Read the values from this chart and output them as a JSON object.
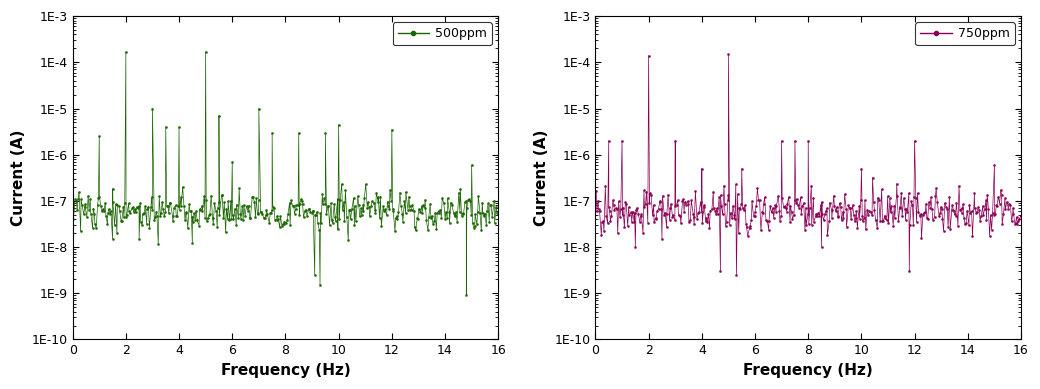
{
  "left_label": "500ppm",
  "right_label": "750ppm",
  "left_color": "#1a6600",
  "right_color": "#8B0057",
  "xlabel": "Frequency (Hz)",
  "ylabel": "Current (A)",
  "xlim": [
    0,
    16
  ],
  "ylim_log": [
    -10,
    -3
  ],
  "xticks": [
    0,
    2,
    4,
    6,
    8,
    10,
    12,
    14,
    16
  ],
  "ytick_labels": [
    "1E-10",
    "1E-9",
    "1E-8",
    "1E-7",
    "1E-6",
    "1E-5",
    "1E-4",
    "1E-3"
  ],
  "left_peaks_x": [
    1.0,
    2.0,
    3.0,
    3.5,
    4.0,
    5.0,
    5.5,
    6.0,
    7.0,
    7.5,
    8.5,
    9.5,
    10.0,
    12.0,
    15.0
  ],
  "left_peaks_y": [
    2.5e-06,
    0.00017,
    1e-05,
    4e-06,
    4e-06,
    0.00017,
    7e-06,
    7e-07,
    1e-05,
    3e-06,
    3e-06,
    3e-06,
    4.5e-06,
    3.5e-06,
    6e-07
  ],
  "left_dips_x": [
    1.5,
    2.5,
    4.5,
    9.1,
    9.3,
    14.8
  ],
  "left_dips_y": [
    1.5e-08,
    1.5e-08,
    1.2e-08,
    2.5e-09,
    1.5e-09,
    9e-10
  ],
  "right_peaks_x": [
    0.5,
    1.0,
    2.0,
    3.0,
    4.0,
    5.0,
    5.5,
    7.0,
    7.5,
    8.0,
    10.0,
    12.0,
    15.0
  ],
  "right_peaks_y": [
    2e-06,
    2e-06,
    0.00014,
    2e-06,
    5e-07,
    0.00015,
    5e-07,
    2e-06,
    2e-06,
    2e-06,
    5e-07,
    2e-06,
    6e-07
  ],
  "right_dips_x": [
    1.5,
    2.5,
    4.7,
    5.3,
    8.5,
    11.8
  ],
  "right_dips_y": [
    1e-08,
    1.5e-08,
    3e-09,
    2.5e-09,
    1e-08,
    3e-09
  ]
}
